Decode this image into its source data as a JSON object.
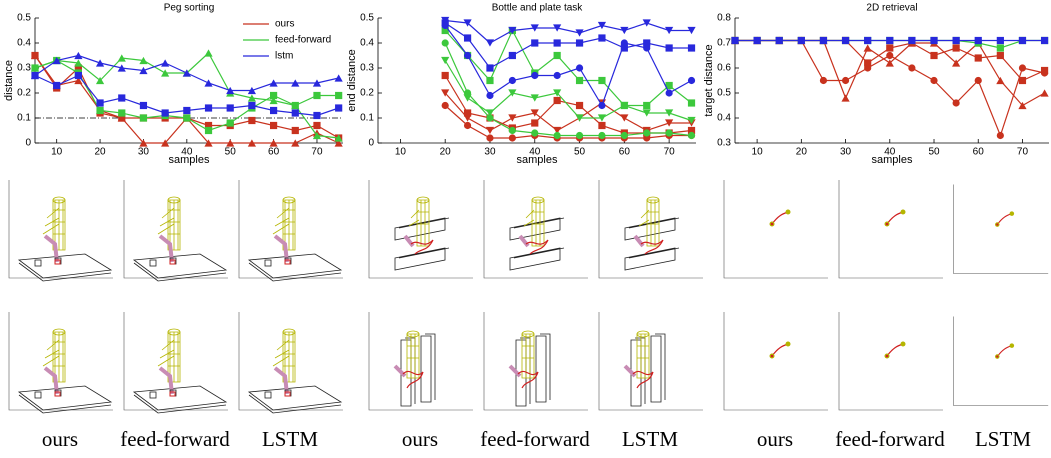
{
  "chart_data": [
    {
      "type": "line",
      "title": "Peg sorting",
      "xlabel": "samples",
      "ylabel": "distance",
      "x": [
        5,
        10,
        15,
        20,
        25,
        30,
        35,
        40,
        45,
        50,
        55,
        60,
        65,
        70,
        75
      ],
      "xlim": [
        5,
        76
      ],
      "xticks": [
        10,
        20,
        30,
        40,
        50,
        60,
        70
      ],
      "ylim": [
        0,
        0.5
      ],
      "yticks": [
        0,
        0.1,
        0.2,
        0.3,
        0.4,
        0.5
      ],
      "hline": 0.1,
      "legend": "upper right",
      "series": [
        {
          "name": "ours",
          "color": "#c8321e",
          "runs": [
            {
              "marker": "square",
              "values": [
                0.35,
                0.22,
                0.3,
                0.12,
                0.1,
                0.1,
                0.1,
                0.1,
                0.07,
                0.07,
                0.09,
                0.07,
                0.05,
                0.07,
                0.02
              ]
            },
            {
              "marker": "triangle-up",
              "values": [
                0.35,
                0.23,
                0.25,
                0.13,
                0.1,
                0.0,
                0.0,
                0.1,
                0.0,
                0.0,
                0.0,
                0.0,
                0.0,
                0.04,
                0.0
              ]
            }
          ]
        },
        {
          "name": "feed-forward",
          "color": "#3cc83c",
          "runs": [
            {
              "marker": "triangle-up",
              "values": [
                0.3,
                0.33,
                0.32,
                0.25,
                0.34,
                0.33,
                0.28,
                0.28,
                0.36,
                0.2,
                0.18,
                0.17,
                0.15,
                0.03,
                0.02
              ]
            },
            {
              "marker": "square",
              "values": [
                0.3,
                0.33,
                0.28,
                0.13,
                0.12,
                0.1,
                0.11,
                0.1,
                0.05,
                0.08,
                0.14,
                0.19,
                0.15,
                0.19,
                0.19
              ]
            }
          ]
        },
        {
          "name": "lstm",
          "color": "#2828dc",
          "runs": [
            {
              "marker": "triangle-up",
              "values": [
                0.27,
                0.33,
                0.35,
                0.32,
                0.3,
                0.29,
                0.32,
                0.28,
                0.24,
                0.21,
                0.21,
                0.24,
                0.24,
                0.24,
                0.26
              ]
            },
            {
              "marker": "square",
              "values": [
                0.27,
                0.23,
                0.27,
                0.16,
                0.18,
                0.15,
                0.12,
                0.13,
                0.14,
                0.14,
                0.15,
                0.13,
                0.12,
                0.11,
                0.14
              ]
            }
          ]
        }
      ]
    },
    {
      "type": "line",
      "title": "Bottle and plate task",
      "xlabel": "samples",
      "ylabel": "end distance",
      "x": [
        5,
        10,
        15,
        20,
        25,
        30,
        35,
        40,
        45,
        50,
        55,
        60,
        65,
        70,
        75
      ],
      "xlim": [
        5,
        76
      ],
      "xticks": [
        10,
        20,
        30,
        40,
        50,
        60,
        70
      ],
      "ylim": [
        0,
        0.5
      ],
      "yticks": [
        0,
        0.1,
        0.2,
        0.3,
        0.4,
        0.5
      ],
      "series": [
        {
          "name": "ours",
          "color": "#c8321e",
          "runs": [
            {
              "marker": "circle",
              "values": [
                null,
                null,
                null,
                0.15,
                0.07,
                0.02,
                0.02,
                0.03,
                0.02,
                0.02,
                0.02,
                0.02,
                0.02,
                0.03,
                0.03
              ]
            },
            {
              "marker": "triangle-down",
              "values": [
                null,
                null,
                null,
                0.2,
                0.1,
                0.05,
                0.1,
                0.12,
                0.05,
                0.1,
                0.16,
                0.1,
                0.05,
                0.08,
                0.08
              ]
            },
            {
              "marker": "square",
              "values": [
                null,
                null,
                null,
                0.27,
                0.12,
                0.1,
                0.06,
                0.08,
                0.17,
                0.15,
                0.07,
                0.04,
                0.04,
                0.04,
                0.05
              ]
            }
          ]
        },
        {
          "name": "feed-forward",
          "color": "#3cc83c",
          "runs": [
            {
              "marker": "circle",
              "values": [
                null,
                null,
                null,
                0.4,
                0.2,
                0.1,
                0.05,
                0.04,
                0.03,
                0.03,
                0.03,
                0.03,
                0.04,
                0.04,
                0.03
              ]
            },
            {
              "marker": "triangle-down",
              "values": [
                null,
                null,
                null,
                0.33,
                0.18,
                0.12,
                0.2,
                0.18,
                0.2,
                0.1,
                0.1,
                0.15,
                0.12,
                0.12,
                0.09
              ]
            },
            {
              "marker": "square",
              "values": [
                null,
                null,
                null,
                0.45,
                0.35,
                0.25,
                0.45,
                0.28,
                0.35,
                0.25,
                0.25,
                0.15,
                0.15,
                0.23,
                0.16
              ]
            }
          ]
        },
        {
          "name": "lstm",
          "color": "#2828dc",
          "runs": [
            {
              "marker": "circle",
              "values": [
                null,
                null,
                null,
                0.47,
                0.35,
                0.19,
                0.25,
                0.27,
                0.27,
                0.3,
                0.15,
                0.4,
                0.38,
                0.2,
                0.25
              ]
            },
            {
              "marker": "triangle-down",
              "values": [
                null,
                null,
                null,
                0.49,
                0.48,
                0.4,
                0.45,
                0.46,
                0.46,
                0.44,
                0.47,
                0.45,
                0.48,
                0.45,
                0.45
              ]
            },
            {
              "marker": "square",
              "values": [
                null,
                null,
                null,
                0.48,
                0.42,
                0.3,
                0.35,
                0.4,
                0.4,
                0.4,
                0.42,
                0.38,
                0.4,
                0.38,
                0.38
              ]
            }
          ]
        }
      ]
    },
    {
      "type": "line",
      "title": "2D retrieval",
      "xlabel": "samples",
      "ylabel": "target distance",
      "x": [
        5,
        10,
        15,
        20,
        25,
        30,
        35,
        40,
        45,
        50,
        55,
        60,
        65,
        70,
        75
      ],
      "xlim": [
        5,
        76
      ],
      "xticks": [
        10,
        20,
        30,
        40,
        50,
        60,
        70
      ],
      "ylim": [
        0.3,
        0.8
      ],
      "yticks": [
        0.3,
        0.4,
        0.5,
        0.6,
        0.7,
        0.8
      ],
      "series": [
        {
          "name": "ours",
          "color": "#c8321e",
          "runs": [
            {
              "marker": "circle",
              "values": [
                0.71,
                0.71,
                0.71,
                0.71,
                0.55,
                0.55,
                0.6,
                0.65,
                0.6,
                0.55,
                0.46,
                0.55,
                0.33,
                0.6,
                0.58
              ]
            },
            {
              "marker": "triangle-up",
              "values": [
                0.71,
                0.71,
                0.71,
                0.71,
                0.71,
                0.48,
                0.68,
                0.62,
                0.7,
                0.7,
                0.62,
                0.7,
                0.55,
                0.45,
                0.5
              ]
            },
            {
              "marker": "square",
              "values": [
                0.71,
                0.71,
                0.71,
                0.71,
                0.71,
                0.71,
                0.62,
                0.68,
                0.7,
                0.65,
                0.68,
                0.64,
                0.65,
                0.55,
                0.59
              ]
            }
          ]
        },
        {
          "name": "feed-forward",
          "color": "#3cc83c",
          "runs": [
            {
              "marker": "square",
              "values": [
                0.71,
                0.71,
                0.71,
                0.71,
                0.71,
                0.71,
                0.71,
                0.71,
                0.71,
                0.71,
                0.71,
                0.7,
                0.68,
                0.71,
                0.71
              ]
            }
          ]
        },
        {
          "name": "lstm",
          "color": "#2828dc",
          "runs": [
            {
              "marker": "square",
              "values": [
                0.71,
                0.71,
                0.71,
                0.71,
                0.71,
                0.71,
                0.71,
                0.71,
                0.71,
                0.71,
                0.71,
                0.71,
                0.71,
                0.71,
                0.71
              ]
            }
          ]
        }
      ]
    }
  ],
  "captions": [
    "ours",
    "feed-forward",
    "LSTM",
    "ours",
    "feed-forward",
    "LSTM",
    "ours",
    "feed-forward",
    "LSTM"
  ]
}
